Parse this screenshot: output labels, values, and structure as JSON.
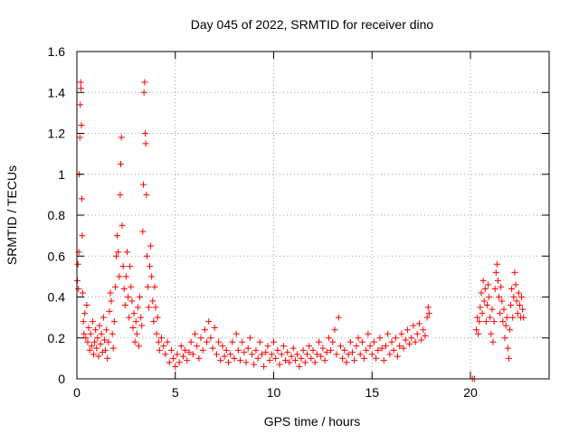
{
  "chart_data": {
    "type": "scatter",
    "title": "Day 045 of 2022, SRMTID for receiver dino",
    "xlabel": "GPS time / hours",
    "ylabel": "SRMTID / TECUs",
    "xlim": [
      0,
      24
    ],
    "ylim": [
      0,
      1.6
    ],
    "xticks": [
      0,
      5,
      10,
      15,
      20
    ],
    "xtick_labels": [
      "0",
      "5",
      "10",
      "15",
      "20"
    ],
    "yticks": [
      0,
      0.2,
      0.4,
      0.6,
      0.8,
      1.0,
      1.2,
      1.4,
      1.6
    ],
    "ytick_labels": [
      "0",
      "0.2",
      "0.4",
      "0.6",
      "0.8",
      "1",
      "1.2",
      "1.4",
      "1.6"
    ],
    "grid": true,
    "marker": "+",
    "color": "#ff0000",
    "series": [
      {
        "name": "SRMTID",
        "points": [
          [
            0.02,
            0.48
          ],
          [
            0.05,
            0.56
          ],
          [
            0.08,
            0.44
          ],
          [
            0.1,
            0.62
          ],
          [
            0.12,
            1.0
          ],
          [
            0.15,
            1.18
          ],
          [
            0.17,
            1.34
          ],
          [
            0.19,
            1.45
          ],
          [
            0.21,
            1.42
          ],
          [
            0.23,
            1.24
          ],
          [
            0.25,
            0.88
          ],
          [
            0.27,
            0.7
          ],
          [
            0.3,
            0.42
          ],
          [
            0.33,
            0.28
          ],
          [
            0.36,
            0.22
          ],
          [
            0.4,
            0.32
          ],
          [
            0.45,
            0.2
          ],
          [
            0.5,
            0.36
          ],
          [
            0.55,
            0.18
          ],
          [
            0.6,
            0.25
          ],
          [
            0.65,
            0.14
          ],
          [
            0.7,
            0.22
          ],
          [
            0.75,
            0.16
          ],
          [
            0.8,
            0.28
          ],
          [
            0.85,
            0.12
          ],
          [
            0.9,
            0.18
          ],
          [
            0.95,
            0.24
          ],
          [
            1.0,
            0.15
          ],
          [
            1.05,
            0.2
          ],
          [
            1.1,
            0.11
          ],
          [
            1.15,
            0.26
          ],
          [
            1.2,
            0.17
          ],
          [
            1.25,
            0.22
          ],
          [
            1.3,
            0.13
          ],
          [
            1.35,
            0.3
          ],
          [
            1.4,
            0.19
          ],
          [
            1.45,
            0.14
          ],
          [
            1.5,
            0.24
          ],
          [
            1.55,
            0.1
          ],
          [
            1.6,
            0.18
          ],
          [
            1.65,
            0.33
          ],
          [
            1.7,
            0.42
          ],
          [
            1.75,
            0.38
          ],
          [
            1.8,
            0.22
          ],
          [
            1.85,
            0.15
          ],
          [
            1.9,
            0.28
          ],
          [
            1.95,
            0.45
          ],
          [
            2.0,
            0.6
          ],
          [
            2.05,
            0.7
          ],
          [
            2.1,
            0.62
          ],
          [
            2.15,
            0.5
          ],
          [
            2.2,
            0.9
          ],
          [
            2.23,
            1.05
          ],
          [
            2.26,
            1.18
          ],
          [
            2.3,
            0.75
          ],
          [
            2.35,
            0.55
          ],
          [
            2.4,
            0.44
          ],
          [
            2.45,
            0.36
          ],
          [
            2.5,
            0.5
          ],
          [
            2.55,
            0.62
          ],
          [
            2.6,
            0.4
          ],
          [
            2.65,
            0.3
          ],
          [
            2.7,
            0.55
          ],
          [
            2.75,
            0.45
          ],
          [
            2.8,
            0.38
          ],
          [
            2.85,
            0.25
          ],
          [
            2.9,
            0.32
          ],
          [
            2.95,
            0.18
          ],
          [
            3.0,
            0.28
          ],
          [
            3.05,
            0.22
          ],
          [
            3.1,
            0.35
          ],
          [
            3.15,
            0.16
          ],
          [
            3.2,
            0.4
          ],
          [
            3.25,
            0.3
          ],
          [
            3.3,
            0.26
          ],
          [
            3.35,
            0.72
          ],
          [
            3.38,
            0.95
          ],
          [
            3.41,
            1.4
          ],
          [
            3.44,
            1.45
          ],
          [
            3.47,
            1.2
          ],
          [
            3.5,
            1.15
          ],
          [
            3.53,
            0.9
          ],
          [
            3.56,
            0.6
          ],
          [
            3.6,
            0.45
          ],
          [
            3.65,
            0.35
          ],
          [
            3.7,
            0.55
          ],
          [
            3.75,
            0.65
          ],
          [
            3.8,
            0.5
          ],
          [
            3.85,
            0.38
          ],
          [
            3.9,
            0.28
          ],
          [
            3.95,
            0.45
          ],
          [
            4.0,
            0.35
          ],
          [
            4.05,
            0.22
          ],
          [
            4.1,
            0.3
          ],
          [
            4.15,
            0.18
          ],
          [
            4.2,
            0.14
          ],
          [
            4.3,
            0.2
          ],
          [
            4.4,
            0.16
          ],
          [
            4.5,
            0.12
          ],
          [
            4.6,
            0.18
          ],
          [
            4.7,
            0.08
          ],
          [
            4.8,
            0.14
          ],
          [
            4.9,
            0.1
          ],
          [
            5.0,
            0.06
          ],
          [
            5.1,
            0.12
          ],
          [
            5.2,
            0.08
          ],
          [
            5.3,
            0.16
          ],
          [
            5.4,
            0.11
          ],
          [
            5.5,
            0.14
          ],
          [
            5.6,
            0.09
          ],
          [
            5.7,
            0.13
          ],
          [
            5.8,
            0.18
          ],
          [
            5.9,
            0.12
          ],
          [
            6.0,
            0.22
          ],
          [
            6.1,
            0.16
          ],
          [
            6.2,
            0.1
          ],
          [
            6.3,
            0.2
          ],
          [
            6.4,
            0.14
          ],
          [
            6.5,
            0.24
          ],
          [
            6.6,
            0.18
          ],
          [
            6.7,
            0.28
          ],
          [
            6.8,
            0.2
          ],
          [
            6.9,
            0.15
          ],
          [
            7.0,
            0.25
          ],
          [
            7.1,
            0.12
          ],
          [
            7.2,
            0.18
          ],
          [
            7.3,
            0.09
          ],
          [
            7.4,
            0.16
          ],
          [
            7.5,
            0.11
          ],
          [
            7.6,
            0.14
          ],
          [
            7.7,
            0.08
          ],
          [
            7.8,
            0.12
          ],
          [
            7.9,
            0.18
          ],
          [
            8.0,
            0.1
          ],
          [
            8.1,
            0.22
          ],
          [
            8.2,
            0.14
          ],
          [
            8.3,
            0.09
          ],
          [
            8.4,
            0.18
          ],
          [
            8.5,
            0.13
          ],
          [
            8.6,
            0.08
          ],
          [
            8.7,
            0.15
          ],
          [
            8.8,
            0.2
          ],
          [
            8.9,
            0.12
          ],
          [
            9.0,
            0.07
          ],
          [
            9.1,
            0.14
          ],
          [
            9.2,
            0.1
          ],
          [
            9.3,
            0.18
          ],
          [
            9.4,
            0.12
          ],
          [
            9.5,
            0.06
          ],
          [
            9.6,
            0.13
          ],
          [
            9.7,
            0.16
          ],
          [
            9.8,
            0.09
          ],
          [
            9.9,
            0.12
          ],
          [
            10.0,
            0.18
          ],
          [
            10.1,
            0.1
          ],
          [
            10.2,
            0.14
          ],
          [
            10.3,
            0.07
          ],
          [
            10.4,
            0.12
          ],
          [
            10.5,
            0.16
          ],
          [
            10.6,
            0.09
          ],
          [
            10.7,
            0.13
          ],
          [
            10.8,
            0.08
          ],
          [
            10.9,
            0.11
          ],
          [
            11.0,
            0.15
          ],
          [
            11.1,
            0.09
          ],
          [
            11.2,
            0.12
          ],
          [
            11.3,
            0.06
          ],
          [
            11.4,
            0.1
          ],
          [
            11.5,
            0.14
          ],
          [
            11.6,
            0.08
          ],
          [
            11.7,
            0.12
          ],
          [
            11.8,
            0.16
          ],
          [
            11.9,
            0.1
          ],
          [
            12.0,
            0.14
          ],
          [
            12.1,
            0.08
          ],
          [
            12.2,
            0.12
          ],
          [
            12.3,
            0.18
          ],
          [
            12.4,
            0.11
          ],
          [
            12.5,
            0.15
          ],
          [
            12.6,
            0.09
          ],
          [
            12.7,
            0.13
          ],
          [
            12.8,
            0.2
          ],
          [
            12.9,
            0.14
          ],
          [
            13.0,
            0.18
          ],
          [
            13.1,
            0.24
          ],
          [
            13.2,
            0.12
          ],
          [
            13.3,
            0.3
          ],
          [
            13.4,
            0.16
          ],
          [
            13.5,
            0.1
          ],
          [
            13.6,
            0.14
          ],
          [
            13.7,
            0.08
          ],
          [
            13.8,
            0.12
          ],
          [
            13.9,
            0.18
          ],
          [
            14.0,
            0.13
          ],
          [
            14.1,
            0.09
          ],
          [
            14.2,
            0.16
          ],
          [
            14.3,
            0.2
          ],
          [
            14.4,
            0.12
          ],
          [
            14.5,
            0.18
          ],
          [
            14.6,
            0.1
          ],
          [
            14.7,
            0.14
          ],
          [
            14.8,
            0.22
          ],
          [
            14.9,
            0.16
          ],
          [
            15.0,
            0.12
          ],
          [
            15.1,
            0.18
          ],
          [
            15.2,
            0.1
          ],
          [
            15.3,
            0.14
          ],
          [
            15.4,
            0.2
          ],
          [
            15.5,
            0.15
          ],
          [
            15.6,
            0.09
          ],
          [
            15.7,
            0.16
          ],
          [
            15.8,
            0.22
          ],
          [
            15.9,
            0.12
          ],
          [
            16.0,
            0.18
          ],
          [
            16.1,
            0.14
          ],
          [
            16.2,
            0.2
          ],
          [
            16.3,
            0.11
          ],
          [
            16.4,
            0.16
          ],
          [
            16.5,
            0.22
          ],
          [
            16.6,
            0.15
          ],
          [
            16.7,
            0.19
          ],
          [
            16.8,
            0.24
          ],
          [
            16.9,
            0.17
          ],
          [
            17.0,
            0.2
          ],
          [
            17.1,
            0.26
          ],
          [
            17.2,
            0.18
          ],
          [
            17.3,
            0.22
          ],
          [
            17.4,
            0.27
          ],
          [
            17.5,
            0.19
          ],
          [
            17.6,
            0.24
          ],
          [
            17.7,
            0.21
          ],
          [
            17.8,
            0.3
          ],
          [
            17.85,
            0.35
          ],
          [
            17.9,
            0.32
          ],
          [
            20.1,
            0.0
          ],
          [
            20.2,
            0.0
          ],
          [
            20.3,
            0.24
          ],
          [
            20.35,
            0.3
          ],
          [
            20.4,
            0.22
          ],
          [
            20.45,
            0.28
          ],
          [
            20.5,
            0.35
          ],
          [
            20.55,
            0.42
          ],
          [
            20.6,
            0.32
          ],
          [
            20.65,
            0.48
          ],
          [
            20.7,
            0.38
          ],
          [
            20.75,
            0.44
          ],
          [
            20.8,
            0.28
          ],
          [
            20.85,
            0.36
          ],
          [
            20.9,
            0.46
          ],
          [
            20.95,
            0.4
          ],
          [
            21.0,
            0.3
          ],
          [
            21.05,
            0.22
          ],
          [
            21.1,
            0.34
          ],
          [
            21.15,
            0.18
          ],
          [
            21.2,
            0.28
          ],
          [
            21.25,
            0.44
          ],
          [
            21.3,
            0.52
          ],
          [
            21.35,
            0.56
          ],
          [
            21.4,
            0.48
          ],
          [
            21.45,
            0.4
          ],
          [
            21.5,
            0.32
          ],
          [
            21.55,
            0.45
          ],
          [
            21.6,
            0.38
          ],
          [
            21.65,
            0.28
          ],
          [
            21.7,
            0.34
          ],
          [
            21.75,
            0.2
          ],
          [
            21.8,
            0.26
          ],
          [
            21.85,
            0.3
          ],
          [
            21.9,
            0.15
          ],
          [
            21.95,
            0.1
          ],
          [
            22.0,
            0.24
          ],
          [
            22.05,
            0.36
          ],
          [
            22.1,
            0.44
          ],
          [
            22.15,
            0.3
          ],
          [
            22.2,
            0.4
          ],
          [
            22.25,
            0.52
          ],
          [
            22.3,
            0.46
          ],
          [
            22.35,
            0.38
          ],
          [
            22.4,
            0.32
          ],
          [
            22.45,
            0.42
          ],
          [
            22.5,
            0.36
          ],
          [
            22.55,
            0.3
          ],
          [
            22.6,
            0.4
          ],
          [
            22.65,
            0.34
          ],
          [
            22.7,
            0.3
          ]
        ]
      }
    ]
  }
}
